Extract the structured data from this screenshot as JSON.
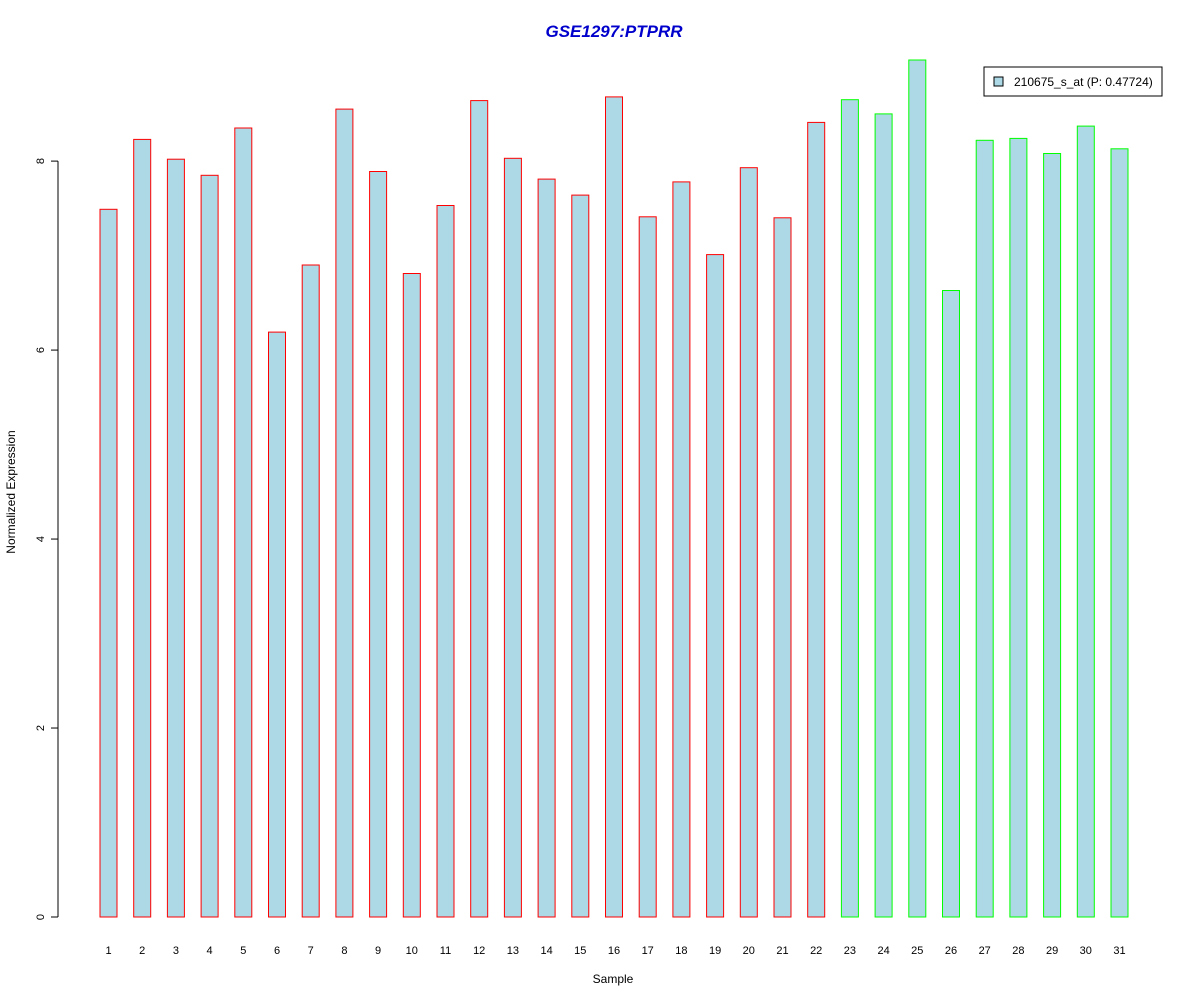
{
  "chart_data": {
    "type": "bar",
    "title": "GSE1297:PTPRR",
    "xlabel": "Sample",
    "ylabel": "Normalized Expression",
    "categories": [
      "1",
      "2",
      "3",
      "4",
      "5",
      "6",
      "7",
      "8",
      "9",
      "10",
      "11",
      "12",
      "13",
      "14",
      "15",
      "16",
      "17",
      "18",
      "19",
      "20",
      "21",
      "22",
      "23",
      "24",
      "25",
      "26",
      "27",
      "28",
      "29",
      "30",
      "31"
    ],
    "series": [
      {
        "name": "210675_s_at (P: 0.47724)",
        "values": [
          7.49,
          8.23,
          8.02,
          7.85,
          8.35,
          6.19,
          6.9,
          8.55,
          7.89,
          6.81,
          7.53,
          8.64,
          8.03,
          7.81,
          7.64,
          8.68,
          7.41,
          7.78,
          7.01,
          7.93,
          7.4,
          8.41,
          8.65,
          8.5,
          9.07,
          6.63,
          8.22,
          8.24,
          8.08,
          8.37,
          8.13
        ]
      }
    ],
    "ylim": [
      0,
      9.07
    ],
    "yticks": [
      0,
      2,
      4,
      6,
      8
    ],
    "grid": false,
    "legend_position": "top-right",
    "group_sizes": [
      22,
      9
    ],
    "colors": {
      "title": "#0000CC",
      "bar_fill": "#ADD8E6",
      "group1_border": "#FF0000",
      "group2_border": "#00FF00",
      "axis": "#000000"
    }
  }
}
